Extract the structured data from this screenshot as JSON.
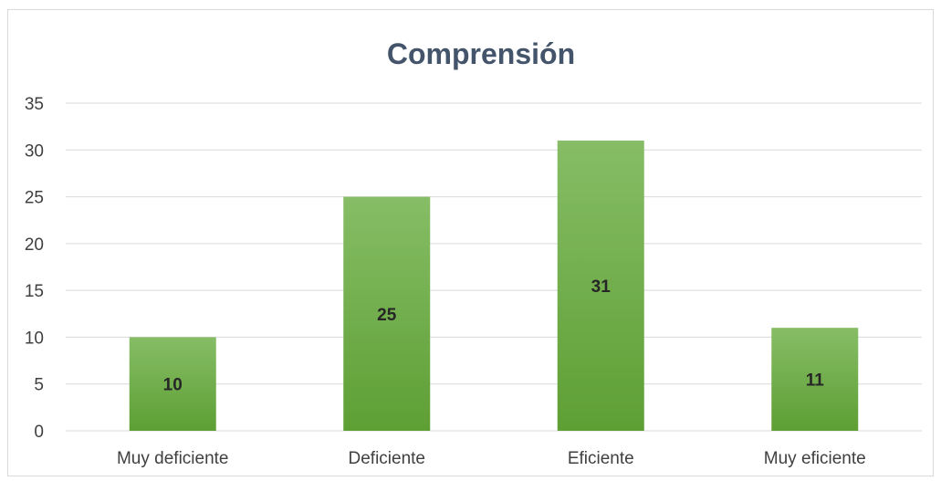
{
  "chart_data": {
    "type": "bar",
    "title": "Comprensión",
    "categories": [
      "Muy deficiente",
      "Deficiente",
      "Eficiente",
      "Muy eficiente"
    ],
    "values": [
      10,
      25,
      31,
      11
    ],
    "ylim": [
      0,
      35
    ],
    "yticks": [
      0,
      5,
      10,
      15,
      20,
      25,
      30,
      35
    ],
    "grid": true,
    "legend": "none",
    "colors": {
      "bar_top": "#86bd66",
      "bar_bottom": "#5e9f34",
      "gridline": "#d9d9d9",
      "axis_line": "#d9d9d9"
    }
  }
}
